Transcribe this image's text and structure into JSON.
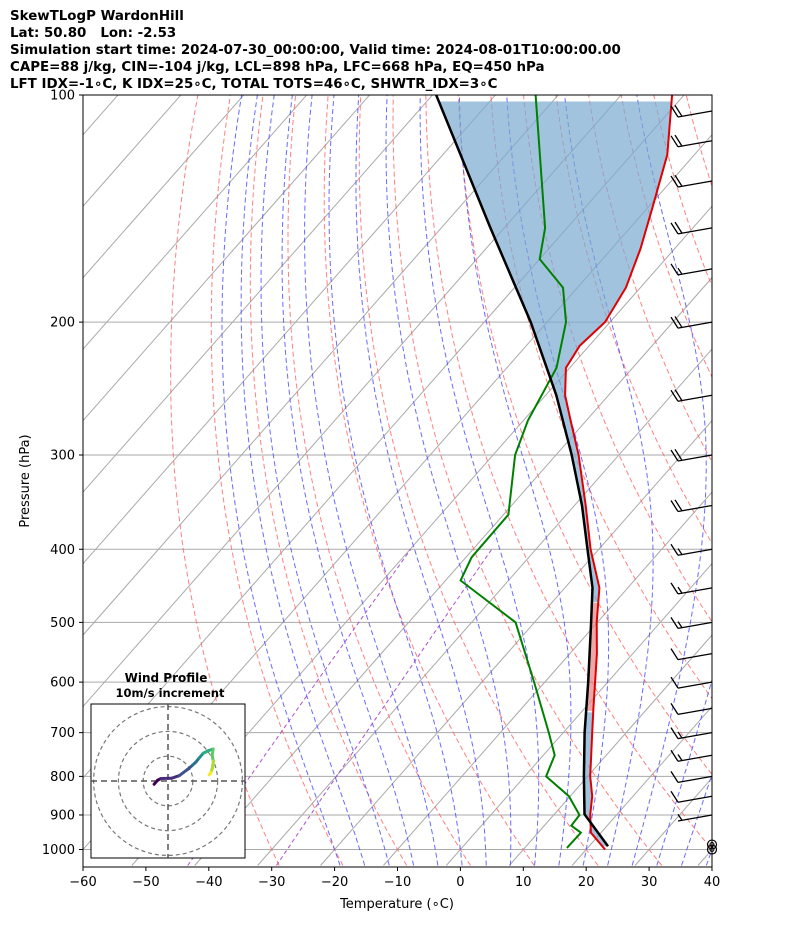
{
  "header": {
    "line1": "SkewTLogP WardonHill",
    "line2": "Lat: 50.80   Lon: -2.53",
    "line3": "Simulation start time: 2024-07-30_00:00:00, Valid time: 2024-08-01T10:00:00.00",
    "line4": "CAPE=88 j/kg, CIN=-104 j/kg, LCL=898 hPa, LFC=668 hPa, EQ=450 hPa",
    "line5": "LFT IDX=-1∘C, K IDX=25∘C, TOTAL TOTS=46∘C, SHWTR_IDX=3∘C"
  },
  "chart_data": {
    "type": "skew-t log-p",
    "xlabel": "Temperature (∘C)",
    "ylabel": "Pressure (hPa)",
    "xlim": [
      -60,
      40
    ],
    "ylim": [
      1050,
      100
    ],
    "x_ticks": [
      -60,
      -50,
      -40,
      -30,
      -20,
      -10,
      0,
      10,
      20,
      30,
      40
    ],
    "y_ticks": [
      1000,
      900,
      800,
      700,
      600,
      500,
      400,
      300,
      200,
      100
    ],
    "grid": true,
    "colors": {
      "temperature": "#e00000",
      "dewpoint": "#008000",
      "parcel": "#000000",
      "cape": "#7aaad0",
      "cin": "#e88080",
      "dry_adiabat": "#ff6060",
      "moist_adiabat": "#5050ff",
      "mixing_ratio": "#9a30c8",
      "isotherm": "#aaaaaa"
    },
    "temperature": [
      {
        "p": 1000,
        "t": 23
      },
      {
        "p": 950,
        "t": 18.4
      },
      {
        "p": 900,
        "t": 15.8
      },
      {
        "p": 850,
        "t": 13.5
      },
      {
        "p": 800,
        "t": 10.4
      },
      {
        "p": 750,
        "t": 7.6
      },
      {
        "p": 700,
        "t": 4.6
      },
      {
        "p": 650,
        "t": 1.4
      },
      {
        "p": 600,
        "t": -2
      },
      {
        "p": 550,
        "t": -5.7
      },
      {
        "p": 500,
        "t": -10.1
      },
      {
        "p": 450,
        "t": -14.5
      },
      {
        "p": 400,
        "t": -21.3
      },
      {
        "p": 350,
        "t": -28.2
      },
      {
        "p": 300,
        "t": -36.4
      },
      {
        "p": 270,
        "t": -42.5
      },
      {
        "p": 250,
        "t": -46.9
      },
      {
        "p": 230,
        "t": -50.6
      },
      {
        "p": 215,
        "t": -51.5
      },
      {
        "p": 200,
        "t": -50.8
      },
      {
        "p": 180,
        "t": -52.3
      },
      {
        "p": 160,
        "t": -55.4
      },
      {
        "p": 140,
        "t": -59.5
      },
      {
        "p": 120,
        "t": -64.3
      },
      {
        "p": 100,
        "t": -71.9
      }
    ],
    "dewpoint": [
      {
        "p": 995,
        "t": 16.7
      },
      {
        "p": 950,
        "t": 16.8
      },
      {
        "p": 930,
        "t": 14.3
      },
      {
        "p": 900,
        "t": 14.1
      },
      {
        "p": 850,
        "t": 9.8
      },
      {
        "p": 800,
        "t": 3.4
      },
      {
        "p": 750,
        "t": 1.8
      },
      {
        "p": 700,
        "t": -2.3
      },
      {
        "p": 600,
        "t": -11.7
      },
      {
        "p": 500,
        "t": -23
      },
      {
        "p": 440,
        "t": -37.6
      },
      {
        "p": 410,
        "t": -39.1
      },
      {
        "p": 360,
        "t": -39.2
      },
      {
        "p": 300,
        "t": -46.5
      },
      {
        "p": 270,
        "t": -49.3
      },
      {
        "p": 230,
        "t": -52.1
      },
      {
        "p": 200,
        "t": -57
      },
      {
        "p": 180,
        "t": -62.3
      },
      {
        "p": 165,
        "t": -70
      },
      {
        "p": 150,
        "t": -73.5
      },
      {
        "p": 100,
        "t": -93.6
      }
    ],
    "parcel": [
      {
        "p": 990,
        "t": 23
      },
      {
        "p": 898,
        "t": 14.8
      },
      {
        "p": 800,
        "t": 9.4
      },
      {
        "p": 700,
        "t": 3.4
      },
      {
        "p": 600,
        "t": -3.1
      },
      {
        "p": 500,
        "t": -11
      },
      {
        "p": 450,
        "t": -15.6
      },
      {
        "p": 400,
        "t": -21.8
      },
      {
        "p": 350,
        "t": -28.8
      },
      {
        "p": 300,
        "t": -37.5
      },
      {
        "p": 250,
        "t": -48.3
      },
      {
        "p": 200,
        "t": -62.6
      },
      {
        "p": 150,
        "t": -82.2
      },
      {
        "p": 100,
        "t": -109.4
      }
    ],
    "wind_barbs": [
      {
        "p": 1000,
        "kt": 0
      },
      {
        "p": 985,
        "kt": 0
      },
      {
        "p": 900,
        "kt": 5
      },
      {
        "p": 850,
        "kt": 10
      },
      {
        "p": 800,
        "kt": 10
      },
      {
        "p": 750,
        "kt": 15
      },
      {
        "p": 700,
        "kt": 15
      },
      {
        "p": 650,
        "kt": 10
      },
      {
        "p": 600,
        "kt": 10
      },
      {
        "p": 550,
        "kt": 10
      },
      {
        "p": 500,
        "kt": 15
      },
      {
        "p": 450,
        "kt": 15
      },
      {
        "p": 400,
        "kt": 15
      },
      {
        "p": 350,
        "kt": 20
      },
      {
        "p": 300,
        "kt": 20
      },
      {
        "p": 250,
        "kt": 20
      },
      {
        "p": 200,
        "kt": 20
      },
      {
        "p": 170,
        "kt": 15
      },
      {
        "p": 150,
        "kt": 20
      },
      {
        "p": 130,
        "kt": 20
      },
      {
        "p": 115,
        "kt": 20
      },
      {
        "p": 105,
        "kt": 20
      }
    ],
    "hodograph": {
      "title": "Wind Profile",
      "subtitle": "10m/s increment",
      "u": [
        -5.6,
        -4.2,
        -2.8,
        1.4,
        4.6,
        7.8,
        9.8,
        11.2,
        12.6,
        14.2,
        16.2,
        18.2,
        17.8,
        18.3,
        17.9,
        17.3,
        16.6
      ],
      "v": [
        -1.3,
        0.3,
        1.0,
        1.1,
        2.2,
        4.6,
        6.3,
        7.6,
        9.3,
        11.2,
        12.2,
        12.9,
        10.3,
        8.0,
        5.2,
        3.4,
        2.5
      ]
    }
  }
}
